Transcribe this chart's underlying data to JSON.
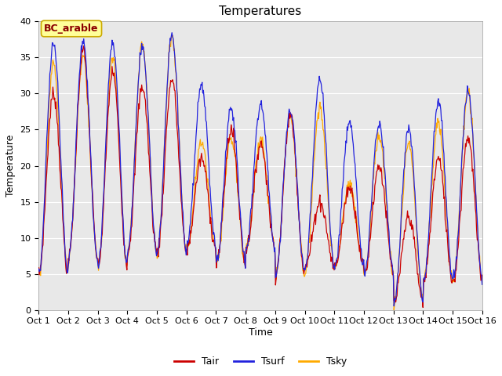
{
  "title": "Temperatures",
  "xlabel": "Time",
  "ylabel": "Temperature",
  "ylim": [
    0,
    40
  ],
  "annotation": "BC_arable",
  "legend_labels": [
    "Tair",
    "Tsurf",
    "Tsky"
  ],
  "line_colors": [
    "#cc0000",
    "#2222dd",
    "#ffaa00"
  ],
  "xtick_labels": [
    "Oct 1",
    "Oct 2",
    "Oct 3",
    "Oct 4",
    "Oct 5",
    "Oct 6",
    "Oct 7",
    "Oct 8",
    "Oct 9",
    "Oct 10",
    "Oct 11",
    "Oct 12",
    "Oct 13",
    "Oct 14",
    "Oct 15",
    "Oct 16"
  ],
  "ytick_vals": [
    0,
    5,
    10,
    15,
    20,
    25,
    30,
    35,
    40
  ],
  "fig_facecolor": "#ffffff",
  "ax_facecolor": "#e8e8e8",
  "title_fontsize": 11,
  "axis_fontsize": 9,
  "tick_fontsize": 8,
  "annotation_fontsize": 9,
  "n_days": 15,
  "pts_per_day": 48
}
